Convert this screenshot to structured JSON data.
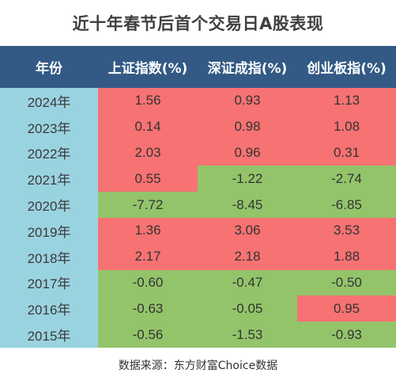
{
  "title": "近十年春节后首个交易日A股表现",
  "source": "数据来源：东方财富Choice数据",
  "colors": {
    "header_bg": "#335a85",
    "year_bg": "#9ad3e0",
    "up": "#f77272",
    "down": "#93c46a"
  },
  "chart_data": {
    "type": "table",
    "title": "近十年春节后首个交易日A股表现",
    "columns": [
      "年份",
      "上证指数(%)",
      "深证成指(%)",
      "创业板指(%)"
    ],
    "rows": [
      {
        "year": "2024年",
        "values": [
          "1.56",
          "0.93",
          "1.13"
        ]
      },
      {
        "year": "2023年",
        "values": [
          "0.14",
          "0.98",
          "1.08"
        ]
      },
      {
        "year": "2022年",
        "values": [
          "2.03",
          "0.96",
          "0.31"
        ]
      },
      {
        "year": "2021年",
        "values": [
          "0.55",
          "-1.22",
          "-2.74"
        ]
      },
      {
        "year": "2020年",
        "values": [
          "-7.72",
          "-8.45",
          "-6.85"
        ]
      },
      {
        "year": "2019年",
        "values": [
          "1.36",
          "3.06",
          "3.53"
        ]
      },
      {
        "year": "2018年",
        "values": [
          "2.17",
          "2.18",
          "1.88"
        ]
      },
      {
        "year": "2017年",
        "values": [
          "-0.60",
          "-0.47",
          "-0.50"
        ]
      },
      {
        "year": "2016年",
        "values": [
          "-0.63",
          "-0.05",
          "0.95"
        ]
      },
      {
        "year": "2015年",
        "values": [
          "-0.56",
          "-1.53",
          "-0.93"
        ]
      }
    ]
  }
}
